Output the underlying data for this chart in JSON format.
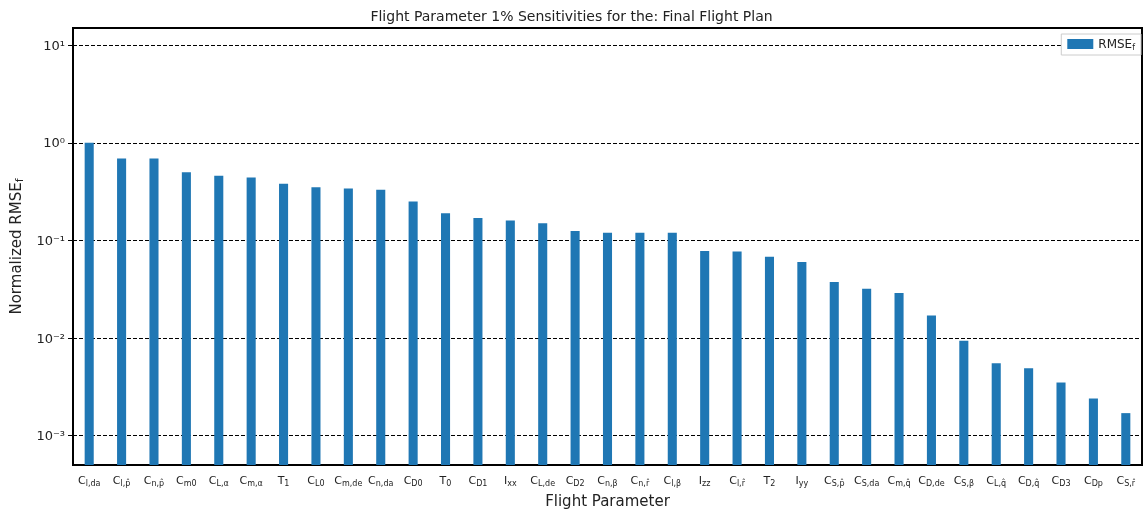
{
  "chart_data": {
    "type": "bar",
    "title": "Flight Parameter 1% Sensitivities for the: Final Flight Plan",
    "xlabel": "Flight Parameter",
    "ylabel": "Normalized RMSE$_{f}$",
    "categories": [
      "C$_{l,da}$",
      "C$_{l,p̂}$",
      "C$_{n,p̂}$",
      "C$_{m0}$",
      "C$_{L,α}$",
      "C$_{m,α}$",
      "T$_{1}$",
      "C$_{L0}$",
      "C$_{m,de}$",
      "C$_{n,da}$",
      "C$_{D0}$",
      "T$_{0}$",
      "C$_{D1}$",
      "I$_{xx}$",
      "C$_{L,de}$",
      "C$_{D2}$",
      "C$_{n,β}$",
      "C$_{n,r̂}$",
      "C$_{l,β}$",
      "I$_{zz}$",
      "C$_{l,r̂}$",
      "T$_{2}$",
      "I$_{yy}$",
      "C$_{S,p̂}$",
      "C$_{S,da}$",
      "C$_{m,q̂}$",
      "C$_{D,de}$",
      "C$_{S,β}$",
      "C$_{L,q̂}$",
      "C$_{D,q̂}$",
      "C$_{D3}$",
      "C$_{Dp}$",
      "C$_{S,r̂}$"
    ],
    "series": [
      {
        "name": "RMSE$_{f}$",
        "color": "#1f77b4",
        "values": [
          1.0,
          0.69,
          0.69,
          0.5,
          0.46,
          0.44,
          0.38,
          0.35,
          0.34,
          0.33,
          0.25,
          0.19,
          0.17,
          0.16,
          0.15,
          0.125,
          0.12,
          0.12,
          0.12,
          0.078,
          0.077,
          0.068,
          0.06,
          0.0375,
          0.032,
          0.029,
          0.017,
          0.0094,
          0.0055,
          0.0049,
          0.0035,
          0.0024,
          0.0017
        ]
      }
    ],
    "log": "y",
    "ylim": [
      0.0005,
      15
    ],
    "yticks": [
      {
        "value": 0.001,
        "label": "10⁻³"
      },
      {
        "value": 0.01,
        "label": "10⁻²"
      },
      {
        "value": 0.1,
        "label": "10⁻¹"
      },
      {
        "value": 1,
        "label": "10⁰"
      },
      {
        "value": 10,
        "label": "10¹"
      }
    ],
    "grid": "y",
    "legend": "top right"
  }
}
